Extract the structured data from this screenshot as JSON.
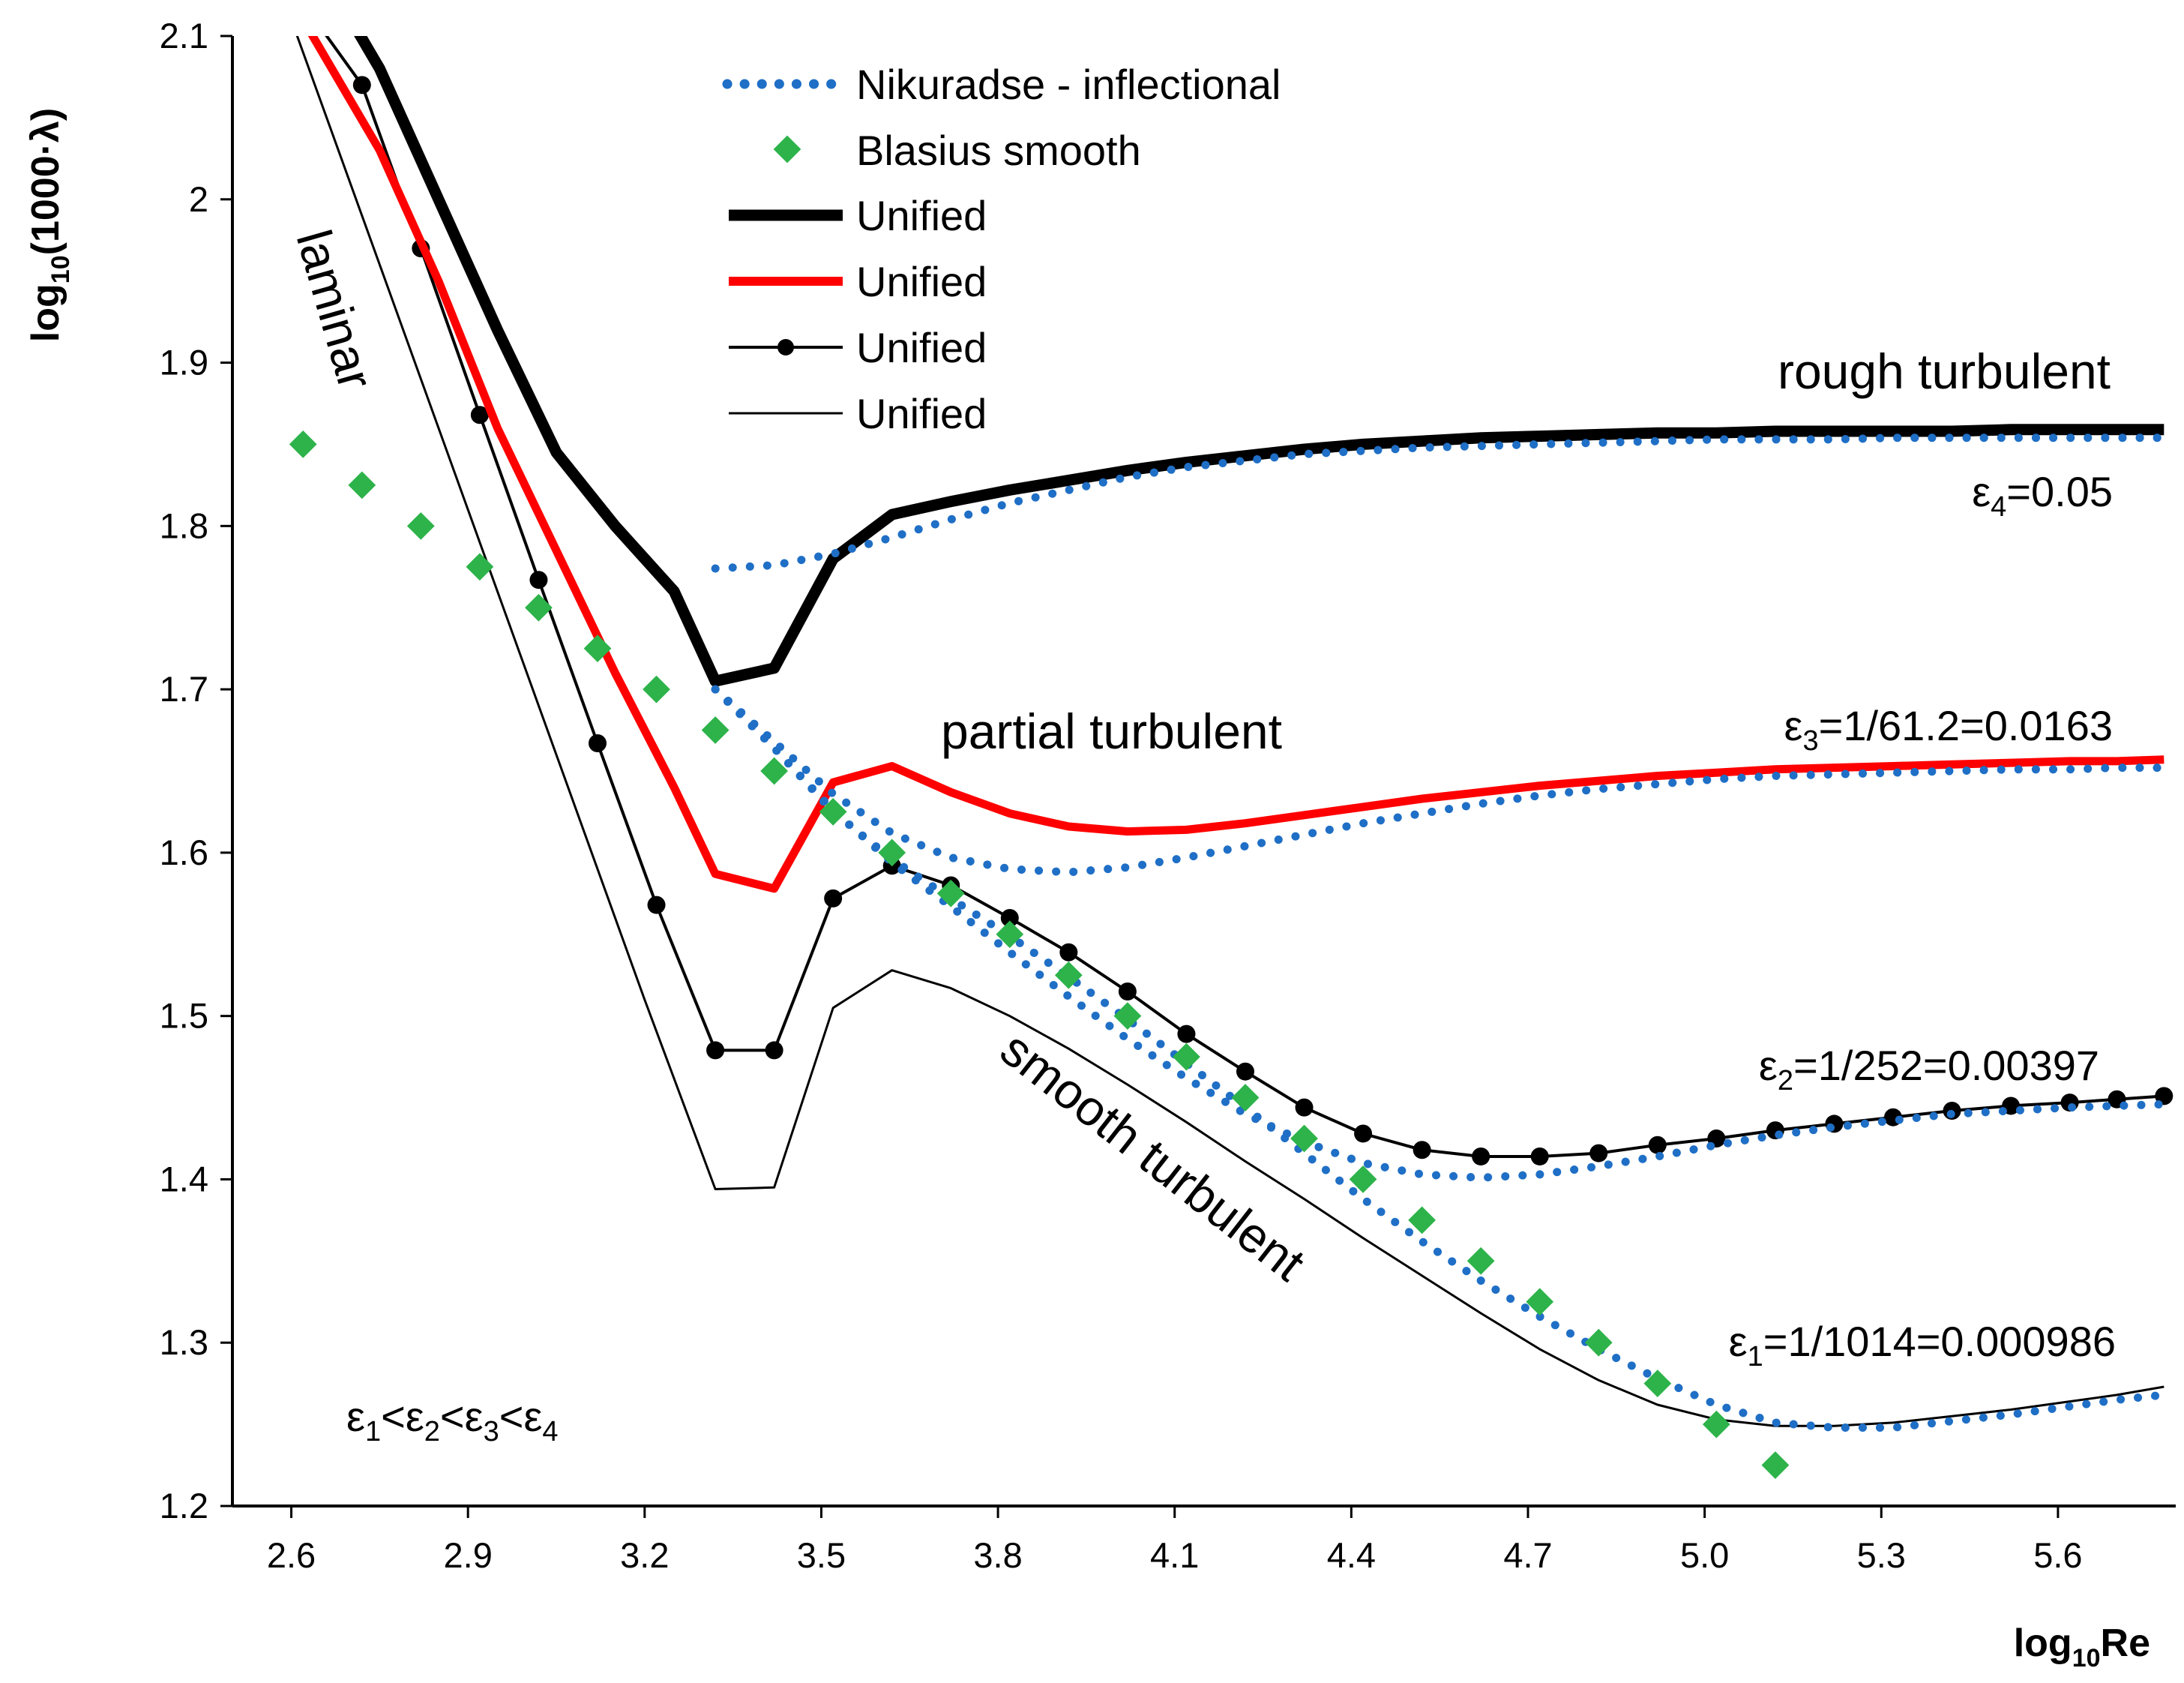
{
  "chart_data": {
    "type": "line",
    "xlabel": {
      "prefix": "log",
      "sub": "10",
      "suffix": "Re"
    },
    "ylabel": {
      "prefix": "log",
      "sub": "10",
      "suffix": "(1000·λ)"
    },
    "xlim": [
      2.5,
      5.8
    ],
    "ylim": [
      1.2,
      2.1
    ],
    "x_ticks": [
      "2.6",
      "2.9",
      "3.2",
      "3.5",
      "3.8",
      "4.1",
      "4.4",
      "4.7",
      "5.0",
      "5.3",
      "5.6"
    ],
    "y_ticks": [
      "1.2",
      "1.3",
      "1.4",
      "1.5",
      "1.6",
      "1.7",
      "1.8",
      "1.9",
      "2",
      "2.1"
    ],
    "legend": [
      {
        "label": "Nikuradse - inflectional",
        "style": "dotted-blue"
      },
      {
        "label": "Blasius smooth",
        "style": "green-diamond"
      },
      {
        "label": "Unified",
        "style": "thick-black"
      },
      {
        "label": "Unified",
        "style": "red"
      },
      {
        "label": "Unified",
        "style": "black-dot-marker"
      },
      {
        "label": "Unified",
        "style": "thin-black"
      }
    ],
    "colors": {
      "nikuradse": "#1f6fc6",
      "blasius": "#2db34a",
      "unified_eps4": "#000000",
      "unified_eps3": "#ff0000",
      "unified_eps2": "#000000",
      "unified_eps1": "#000000"
    },
    "series": [
      {
        "name": "Unified ε4",
        "key": "u4",
        "x": [
          2.62,
          2.75,
          2.85,
          2.95,
          3.05,
          3.15,
          3.25,
          3.32,
          3.42,
          3.52,
          3.62,
          3.72,
          3.82,
          3.92,
          4.02,
          4.12,
          4.22,
          4.32,
          4.42,
          4.52,
          4.62,
          4.72,
          4.82,
          4.92,
          5.02,
          5.12,
          5.22,
          5.32,
          5.42,
          5.52,
          5.62,
          5.7,
          5.78
        ],
        "y": [
          2.16,
          2.08,
          2.0,
          1.92,
          1.845,
          1.8,
          1.76,
          1.705,
          1.713,
          1.78,
          1.807,
          1.815,
          1.822,
          1.828,
          1.834,
          1.839,
          1.843,
          1.847,
          1.85,
          1.852,
          1.854,
          1.855,
          1.856,
          1.857,
          1.857,
          1.858,
          1.858,
          1.858,
          1.858,
          1.859,
          1.859,
          1.859,
          1.859
        ]
      },
      {
        "name": "Unified ε3",
        "key": "u3",
        "x": [
          2.62,
          2.75,
          2.85,
          2.95,
          3.05,
          3.15,
          3.25,
          3.32,
          3.42,
          3.52,
          3.62,
          3.72,
          3.82,
          3.92,
          4.02,
          4.12,
          4.22,
          4.32,
          4.42,
          4.52,
          4.62,
          4.72,
          4.82,
          4.92,
          5.02,
          5.12,
          5.22,
          5.32,
          5.42,
          5.52,
          5.62,
          5.7,
          5.78
        ],
        "y": [
          2.11,
          2.03,
          1.95,
          1.86,
          1.785,
          1.71,
          1.64,
          1.587,
          1.578,
          1.643,
          1.653,
          1.637,
          1.624,
          1.616,
          1.613,
          1.614,
          1.618,
          1.623,
          1.628,
          1.633,
          1.637,
          1.641,
          1.644,
          1.647,
          1.649,
          1.651,
          1.652,
          1.653,
          1.654,
          1.655,
          1.656,
          1.656,
          1.657
        ]
      },
      {
        "name": "Unified ε2",
        "key": "u2",
        "x": [
          2.62,
          2.72,
          2.82,
          2.92,
          3.02,
          3.12,
          3.22,
          3.32,
          3.42,
          3.52,
          3.62,
          3.72,
          3.82,
          3.92,
          4.02,
          4.12,
          4.22,
          4.32,
          4.42,
          4.52,
          4.62,
          4.72,
          4.82,
          4.92,
          5.02,
          5.12,
          5.22,
          5.32,
          5.42,
          5.52,
          5.62,
          5.7,
          5.78
        ],
        "y": [
          2.12,
          2.07,
          1.97,
          1.868,
          1.767,
          1.667,
          1.568,
          1.479,
          1.479,
          1.572,
          1.592,
          1.58,
          1.56,
          1.539,
          1.515,
          1.489,
          1.466,
          1.444,
          1.428,
          1.418,
          1.414,
          1.414,
          1.416,
          1.421,
          1.425,
          1.43,
          1.434,
          1.438,
          1.442,
          1.445,
          1.447,
          1.449,
          1.451
        ]
      },
      {
        "name": "Unified ε1",
        "key": "u1",
        "x": [
          2.6,
          2.75,
          2.9,
          3.05,
          3.2,
          3.32,
          3.42,
          3.52,
          3.62,
          3.72,
          3.82,
          3.92,
          4.02,
          4.12,
          4.22,
          4.32,
          4.42,
          4.52,
          4.62,
          4.72,
          4.82,
          4.92,
          5.02,
          5.12,
          5.22,
          5.32,
          5.42,
          5.52,
          5.62,
          5.7,
          5.78
        ],
        "y": [
          2.11,
          1.96,
          1.81,
          1.66,
          1.51,
          1.394,
          1.395,
          1.505,
          1.528,
          1.517,
          1.5,
          1.48,
          1.458,
          1.435,
          1.411,
          1.388,
          1.364,
          1.341,
          1.318,
          1.296,
          1.277,
          1.262,
          1.253,
          1.249,
          1.249,
          1.251,
          1.255,
          1.259,
          1.264,
          1.268,
          1.273
        ]
      },
      {
        "name": "Nikuradse ε4",
        "key": "n4",
        "x": [
          3.32,
          3.42,
          3.52,
          3.62,
          3.72,
          3.82,
          3.92,
          4.02,
          4.12,
          4.22,
          4.32,
          4.42,
          4.52,
          4.62,
          4.72,
          4.82,
          4.92,
          5.02,
          5.12,
          5.22,
          5.32,
          5.42,
          5.52,
          5.62,
          5.7,
          5.78
        ],
        "y": [
          1.774,
          1.776,
          1.783,
          1.793,
          1.804,
          1.814,
          1.822,
          1.83,
          1.836,
          1.84,
          1.844,
          1.846,
          1.848,
          1.849,
          1.85,
          1.851,
          1.852,
          1.853,
          1.853,
          1.853,
          1.854,
          1.854,
          1.854,
          1.854,
          1.854,
          1.854
        ]
      },
      {
        "name": "Nikuradse ε3",
        "key": "n3",
        "x": [
          3.32,
          3.42,
          3.52,
          3.62,
          3.72,
          3.82,
          3.92,
          4.02,
          4.12,
          4.22,
          4.32,
          4.42,
          4.52,
          4.62,
          4.72,
          4.82,
          4.92,
          5.02,
          5.12,
          5.22,
          5.32,
          5.42,
          5.52,
          5.62,
          5.7,
          5.78
        ],
        "y": [
          1.7,
          1.668,
          1.636,
          1.612,
          1.597,
          1.59,
          1.588,
          1.591,
          1.597,
          1.604,
          1.611,
          1.618,
          1.624,
          1.63,
          1.635,
          1.639,
          1.642,
          1.645,
          1.647,
          1.648,
          1.649,
          1.65,
          1.651,
          1.651,
          1.652,
          1.652
        ]
      },
      {
        "name": "Nikuradse ε2",
        "key": "n2",
        "x": [
          3.32,
          3.42,
          3.52,
          3.62,
          3.72,
          3.82,
          3.92,
          4.02,
          4.12,
          4.22,
          4.32,
          4.42,
          4.52,
          4.62,
          4.72,
          4.82,
          4.92,
          5.02,
          5.12,
          5.22,
          5.32,
          5.42,
          5.52,
          5.62,
          5.7,
          5.78
        ],
        "y": [
          1.7,
          1.664,
          1.626,
          1.594,
          1.567,
          1.539,
          1.512,
          1.486,
          1.462,
          1.44,
          1.423,
          1.41,
          1.403,
          1.401,
          1.403,
          1.408,
          1.414,
          1.421,
          1.427,
          1.432,
          1.436,
          1.44,
          1.442,
          1.444,
          1.445,
          1.446
        ]
      },
      {
        "name": "Nikuradse ε1",
        "key": "n1",
        "x": [
          3.32,
          3.42,
          3.52,
          3.62,
          3.72,
          3.82,
          3.92,
          4.02,
          4.12,
          4.22,
          4.32,
          4.42,
          4.52,
          4.62,
          4.72,
          4.82,
          4.92,
          5.02,
          5.12,
          5.22,
          5.32,
          5.42,
          5.52,
          5.62,
          5.7,
          5.78
        ],
        "y": [
          1.7,
          1.664,
          1.625,
          1.596,
          1.572,
          1.549,
          1.524,
          1.498,
          1.471,
          1.444,
          1.416,
          1.388,
          1.362,
          1.338,
          1.316,
          1.296,
          1.278,
          1.262,
          1.251,
          1.248,
          1.248,
          1.252,
          1.256,
          1.261,
          1.265,
          1.268
        ]
      },
      {
        "name": "Blasius smooth",
        "key": "blasius",
        "x": [
          2.62,
          2.72,
          2.82,
          2.92,
          3.02,
          3.12,
          3.22,
          3.32,
          3.42,
          3.52,
          3.62,
          3.72,
          3.82,
          3.92,
          4.02,
          4.12,
          4.22,
          4.32,
          4.42,
          4.52,
          4.62,
          4.72,
          4.82,
          4.92,
          5.02,
          5.12
        ],
        "y": [
          1.85,
          1.825,
          1.8,
          1.775,
          1.75,
          1.725,
          1.7,
          1.675,
          1.65,
          1.625,
          1.6,
          1.575,
          1.55,
          1.525,
          1.5,
          1.475,
          1.45,
          1.425,
          1.4,
          1.375,
          1.35,
          1.325,
          1.3,
          1.275,
          1.25,
          1.225
        ]
      }
    ],
    "annotations": {
      "laminar": "laminar",
      "partial_turbulent": "partial turbulent",
      "rough_turbulent": "rough turbulent",
      "smooth_turbulent": "smooth turbulent"
    },
    "epsilon_labels": [
      {
        "sym": "ε",
        "sub": "4",
        "value": "=0.05"
      },
      {
        "sym": "ε",
        "sub": "3",
        "value": "=1/61.2=0.0163"
      },
      {
        "sym": "ε",
        "sub": "2",
        "value": "=1/252=0.00397"
      },
      {
        "sym": "ε",
        "sub": "1",
        "value": "=1/1014=0.000986"
      }
    ],
    "inequality": [
      {
        "sym": "ε",
        "sub": "1",
        "op": "<"
      },
      {
        "sym": "ε",
        "sub": "2",
        "op": "<"
      },
      {
        "sym": "ε",
        "sub": "3",
        "op": "<"
      },
      {
        "sym": "ε",
        "sub": "4",
        "op": ""
      }
    ]
  }
}
